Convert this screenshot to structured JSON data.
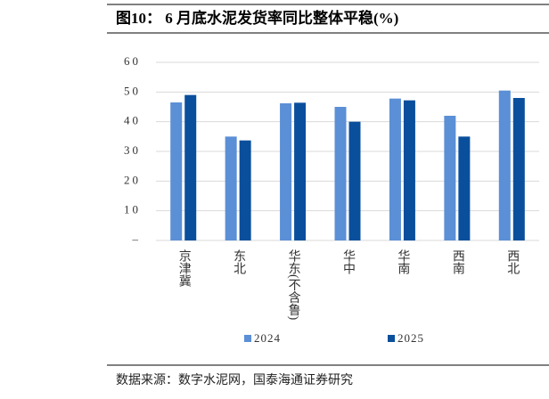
{
  "chart_data": {
    "type": "bar",
    "title": "图10： 6 月底水泥发货率同比整体平稳(%)",
    "source": "数据来源：数字水泥网，国泰海通证券研究",
    "categories": [
      "京津冀",
      "东北",
      "华东(不含鲁)",
      "华中",
      "华南",
      "西南",
      "西北"
    ],
    "series": [
      {
        "name": "2024",
        "color": "#5b8fd6",
        "values": [
          46.5,
          35,
          46.2,
          45,
          47.8,
          42,
          50.5
        ]
      },
      {
        "name": "2025",
        "color": "#0a4f9c",
        "values": [
          49,
          33.7,
          46.4,
          40,
          47.2,
          35,
          48
        ]
      }
    ],
    "ylim": [
      0,
      60
    ],
    "yticks": [
      {
        "value": 0,
        "label": "–"
      },
      10,
      20,
      30,
      40,
      50,
      60
    ],
    "grid": true
  }
}
